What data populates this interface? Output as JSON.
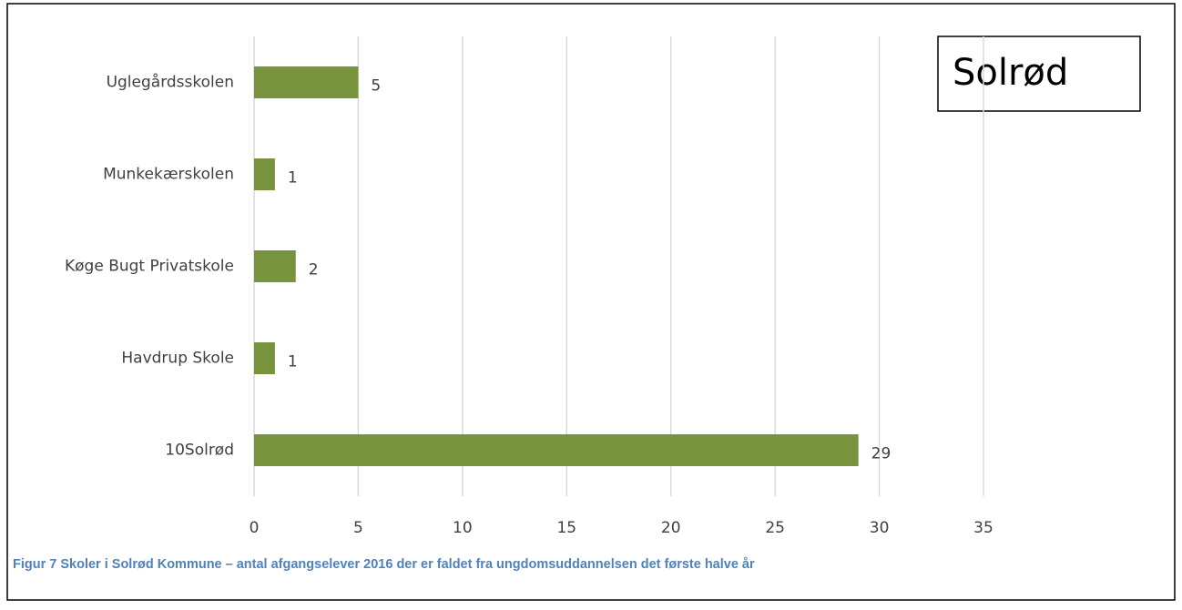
{
  "chart_data": {
    "type": "bar",
    "orientation": "horizontal",
    "categories": [
      "Uglegårdsskolen",
      "Munkekærskolen",
      "Køge Bugt Privatskole",
      "Havdrup Skole",
      "10Solrød"
    ],
    "values": [
      5,
      1,
      2,
      1,
      29
    ],
    "color": "#77933c",
    "xlim": [
      0,
      35
    ],
    "xticks": [
      0,
      5,
      10,
      15,
      20,
      25,
      30,
      35
    ],
    "grid": true,
    "annotation": "Solrød",
    "caption": "Figur 7 Skoler i Solrød Kommune – antal afgangselever 2016 der er faldet fra ungdomsuddannelsen det første halve år"
  }
}
